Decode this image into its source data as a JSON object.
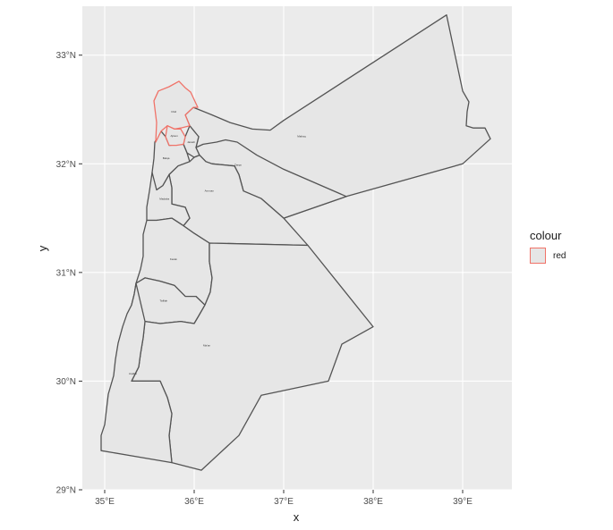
{
  "chart_data": {
    "type": "map",
    "title": "",
    "xlabel": "x",
    "ylabel": "y",
    "xlim": [
      34.75,
      39.55
    ],
    "ylim": [
      29.0,
      33.45
    ],
    "x_ticks": [
      {
        "value": 35,
        "label": "35°E"
      },
      {
        "value": 36,
        "label": "36°E"
      },
      {
        "value": 37,
        "label": "37°E"
      },
      {
        "value": 38,
        "label": "38°E"
      },
      {
        "value": 39,
        "label": "39°E"
      }
    ],
    "y_ticks": [
      {
        "value": 29,
        "label": "29°N"
      },
      {
        "value": 30,
        "label": "30°N"
      },
      {
        "value": 31,
        "label": "31°N"
      },
      {
        "value": 32,
        "label": "32°N"
      },
      {
        "value": 33,
        "label": "33°N"
      }
    ],
    "grid": true,
    "panel_background": "#ebebeb",
    "grid_color": "#ffffff",
    "region_fill": "#e6e6e6",
    "region_border": "#545454",
    "highlight_border": "#f07268",
    "legend": {
      "title": "colour",
      "placement": "right",
      "entries": [
        {
          "label": "red",
          "color": "#f07268"
        }
      ]
    },
    "regions": [
      {
        "name": "Mafraq",
        "highlight": false,
        "coords": [
          [
            35.99,
            32.52
          ],
          [
            36.2,
            32.45
          ],
          [
            36.4,
            32.38
          ],
          [
            36.65,
            32.32
          ],
          [
            36.85,
            32.31
          ],
          [
            37.0,
            32.4
          ],
          [
            38.82,
            33.37
          ],
          [
            39.0,
            32.67
          ],
          [
            39.07,
            32.57
          ],
          [
            39.05,
            32.48
          ],
          [
            39.04,
            32.35
          ],
          [
            39.12,
            32.33
          ],
          [
            39.25,
            32.33
          ],
          [
            39.31,
            32.23
          ],
          [
            39.0,
            32.0
          ],
          [
            37.7,
            31.7
          ],
          [
            37.0,
            31.5
          ],
          [
            36.75,
            31.68
          ],
          [
            36.55,
            31.75
          ],
          [
            36.5,
            31.9
          ],
          [
            36.45,
            31.98
          ],
          [
            36.2,
            32.0
          ],
          [
            36.13,
            32.02
          ],
          [
            36.06,
            32.08
          ],
          [
            36.02,
            32.15
          ],
          [
            36.05,
            32.25
          ],
          [
            35.98,
            32.27
          ],
          [
            35.95,
            32.35
          ],
          [
            35.9,
            32.45
          ],
          [
            35.99,
            32.52
          ]
        ]
      },
      {
        "name": "Irbid",
        "highlight": true,
        "coords": [
          [
            35.57,
            32.2
          ],
          [
            35.58,
            32.38
          ],
          [
            35.55,
            32.58
          ],
          [
            35.6,
            32.67
          ],
          [
            35.72,
            32.71
          ],
          [
            35.83,
            32.76
          ],
          [
            35.9,
            32.7
          ],
          [
            35.96,
            32.66
          ],
          [
            36.04,
            32.52
          ],
          [
            35.99,
            32.52
          ],
          [
            35.9,
            32.45
          ],
          [
            35.95,
            32.35
          ],
          [
            35.85,
            32.33
          ],
          [
            35.78,
            32.32
          ],
          [
            35.7,
            32.35
          ],
          [
            35.63,
            32.3
          ],
          [
            35.57,
            32.2
          ]
        ]
      },
      {
        "name": "Ajloun",
        "highlight": true,
        "coords": [
          [
            35.68,
            32.25
          ],
          [
            35.7,
            32.35
          ],
          [
            35.78,
            32.32
          ],
          [
            35.85,
            32.32
          ],
          [
            35.9,
            32.25
          ],
          [
            35.88,
            32.18
          ],
          [
            35.8,
            32.17
          ],
          [
            35.72,
            32.17
          ],
          [
            35.68,
            32.25
          ]
        ]
      },
      {
        "name": "Jarash",
        "highlight": false,
        "coords": [
          [
            35.88,
            32.18
          ],
          [
            35.9,
            32.25
          ],
          [
            35.95,
            32.35
          ],
          [
            36.0,
            32.3
          ],
          [
            36.05,
            32.25
          ],
          [
            36.02,
            32.15
          ],
          [
            36.06,
            32.08
          ],
          [
            36.0,
            32.06
          ],
          [
            35.92,
            32.1
          ],
          [
            35.88,
            32.18
          ]
        ]
      },
      {
        "name": "Balqa",
        "highlight": false,
        "coords": [
          [
            35.56,
            32.2
          ],
          [
            35.55,
            32.05
          ],
          [
            35.53,
            31.92
          ],
          [
            35.54,
            31.82
          ],
          [
            35.58,
            31.76
          ],
          [
            35.65,
            31.8
          ],
          [
            35.72,
            31.9
          ],
          [
            35.82,
            31.98
          ],
          [
            35.95,
            32.02
          ],
          [
            35.92,
            32.1
          ],
          [
            35.88,
            32.18
          ],
          [
            35.72,
            32.17
          ],
          [
            35.68,
            32.25
          ],
          [
            35.63,
            32.3
          ],
          [
            35.56,
            32.2
          ]
        ]
      },
      {
        "name": "Zarqa",
        "highlight": false,
        "coords": [
          [
            36.06,
            32.08
          ],
          [
            36.13,
            32.02
          ],
          [
            36.2,
            32.0
          ],
          [
            36.45,
            31.98
          ],
          [
            36.5,
            31.9
          ],
          [
            36.55,
            31.75
          ],
          [
            36.75,
            31.68
          ],
          [
            37.0,
            31.5
          ],
          [
            37.7,
            31.7
          ],
          [
            37.0,
            31.95
          ],
          [
            36.7,
            32.08
          ],
          [
            36.48,
            32.2
          ],
          [
            36.35,
            32.22
          ],
          [
            36.25,
            32.2
          ],
          [
            36.1,
            32.18
          ],
          [
            36.02,
            32.15
          ],
          [
            36.06,
            32.08
          ]
        ]
      },
      {
        "name": "Amman",
        "highlight": false,
        "coords": [
          [
            35.72,
            31.9
          ],
          [
            35.75,
            31.78
          ],
          [
            35.75,
            31.63
          ],
          [
            35.9,
            31.6
          ],
          [
            35.95,
            31.5
          ],
          [
            35.88,
            31.43
          ],
          [
            36.0,
            31.36
          ],
          [
            36.17,
            31.27
          ],
          [
            37.27,
            31.25
          ],
          [
            37.0,
            31.5
          ],
          [
            36.75,
            31.68
          ],
          [
            36.55,
            31.75
          ],
          [
            36.5,
            31.9
          ],
          [
            36.45,
            31.98
          ],
          [
            36.2,
            32.0
          ],
          [
            36.13,
            32.02
          ],
          [
            36.06,
            32.08
          ],
          [
            36.0,
            32.06
          ],
          [
            35.95,
            32.02
          ],
          [
            35.82,
            31.98
          ],
          [
            35.72,
            31.9
          ]
        ]
      },
      {
        "name": "Madaba",
        "highlight": false,
        "coords": [
          [
            35.53,
            31.92
          ],
          [
            35.5,
            31.75
          ],
          [
            35.47,
            31.6
          ],
          [
            35.47,
            31.48
          ],
          [
            35.58,
            31.48
          ],
          [
            35.75,
            31.5
          ],
          [
            35.88,
            31.43
          ],
          [
            35.95,
            31.5
          ],
          [
            35.9,
            31.6
          ],
          [
            35.75,
            31.63
          ],
          [
            35.75,
            31.78
          ],
          [
            35.72,
            31.9
          ],
          [
            35.65,
            31.8
          ],
          [
            35.58,
            31.76
          ],
          [
            35.53,
            31.92
          ]
        ]
      },
      {
        "name": "Karak",
        "highlight": false,
        "coords": [
          [
            35.47,
            31.48
          ],
          [
            35.43,
            31.35
          ],
          [
            35.43,
            31.15
          ],
          [
            35.4,
            31.03
          ],
          [
            35.35,
            30.9
          ],
          [
            35.45,
            30.95
          ],
          [
            35.62,
            30.92
          ],
          [
            35.78,
            30.88
          ],
          [
            35.9,
            30.78
          ],
          [
            36.02,
            30.78
          ],
          [
            36.12,
            30.7
          ],
          [
            36.18,
            30.82
          ],
          [
            36.2,
            30.95
          ],
          [
            36.17,
            31.1
          ],
          [
            36.17,
            31.27
          ],
          [
            36.0,
            31.36
          ],
          [
            35.88,
            31.43
          ],
          [
            35.75,
            31.5
          ],
          [
            35.58,
            31.48
          ],
          [
            35.47,
            31.48
          ]
        ]
      },
      {
        "name": "Tafilah",
        "highlight": false,
        "coords": [
          [
            35.35,
            30.9
          ],
          [
            35.33,
            30.8
          ],
          [
            35.3,
            30.7
          ],
          [
            35.35,
            30.62
          ],
          [
            35.45,
            30.55
          ],
          [
            35.62,
            30.53
          ],
          [
            35.85,
            30.55
          ],
          [
            36.0,
            30.53
          ],
          [
            36.05,
            30.6
          ],
          [
            36.12,
            30.7
          ],
          [
            36.02,
            30.78
          ],
          [
            35.9,
            30.78
          ],
          [
            35.78,
            30.88
          ],
          [
            35.62,
            30.92
          ],
          [
            35.45,
            30.95
          ],
          [
            35.35,
            30.9
          ]
        ]
      },
      {
        "name": "Ma'an",
        "highlight": false,
        "coords": [
          [
            36.17,
            31.27
          ],
          [
            36.17,
            31.1
          ],
          [
            36.2,
            30.95
          ],
          [
            36.18,
            30.82
          ],
          [
            36.12,
            30.7
          ],
          [
            36.05,
            30.6
          ],
          [
            36.0,
            30.53
          ],
          [
            35.85,
            30.55
          ],
          [
            35.62,
            30.53
          ],
          [
            35.45,
            30.55
          ],
          [
            35.43,
            30.4
          ],
          [
            35.4,
            30.25
          ],
          [
            35.38,
            30.13
          ],
          [
            35.3,
            30.0
          ],
          [
            35.62,
            30.0
          ],
          [
            35.7,
            29.85
          ],
          [
            35.75,
            29.7
          ],
          [
            35.72,
            29.5
          ],
          [
            35.75,
            29.25
          ],
          [
            36.08,
            29.18
          ],
          [
            36.5,
            29.5
          ],
          [
            36.75,
            29.87
          ],
          [
            37.5,
            30.0
          ],
          [
            37.65,
            30.34
          ],
          [
            38.0,
            30.5
          ],
          [
            37.27,
            31.25
          ],
          [
            36.17,
            31.27
          ]
        ]
      },
      {
        "name": "Aqaba",
        "highlight": false,
        "coords": [
          [
            34.96,
            29.36
          ],
          [
            34.96,
            29.5
          ],
          [
            35.0,
            29.6
          ],
          [
            35.04,
            29.88
          ],
          [
            35.1,
            30.05
          ],
          [
            35.12,
            30.2
          ],
          [
            35.15,
            30.35
          ],
          [
            35.2,
            30.5
          ],
          [
            35.25,
            30.62
          ],
          [
            35.3,
            30.7
          ],
          [
            35.33,
            30.8
          ],
          [
            35.35,
            30.9
          ],
          [
            35.45,
            30.55
          ],
          [
            35.43,
            30.4
          ],
          [
            35.4,
            30.25
          ],
          [
            35.38,
            30.13
          ],
          [
            35.3,
            30.0
          ],
          [
            35.62,
            30.0
          ],
          [
            35.7,
            29.85
          ],
          [
            35.75,
            29.7
          ],
          [
            35.72,
            29.5
          ],
          [
            35.75,
            29.25
          ],
          [
            34.96,
            29.36
          ]
        ]
      }
    ]
  }
}
